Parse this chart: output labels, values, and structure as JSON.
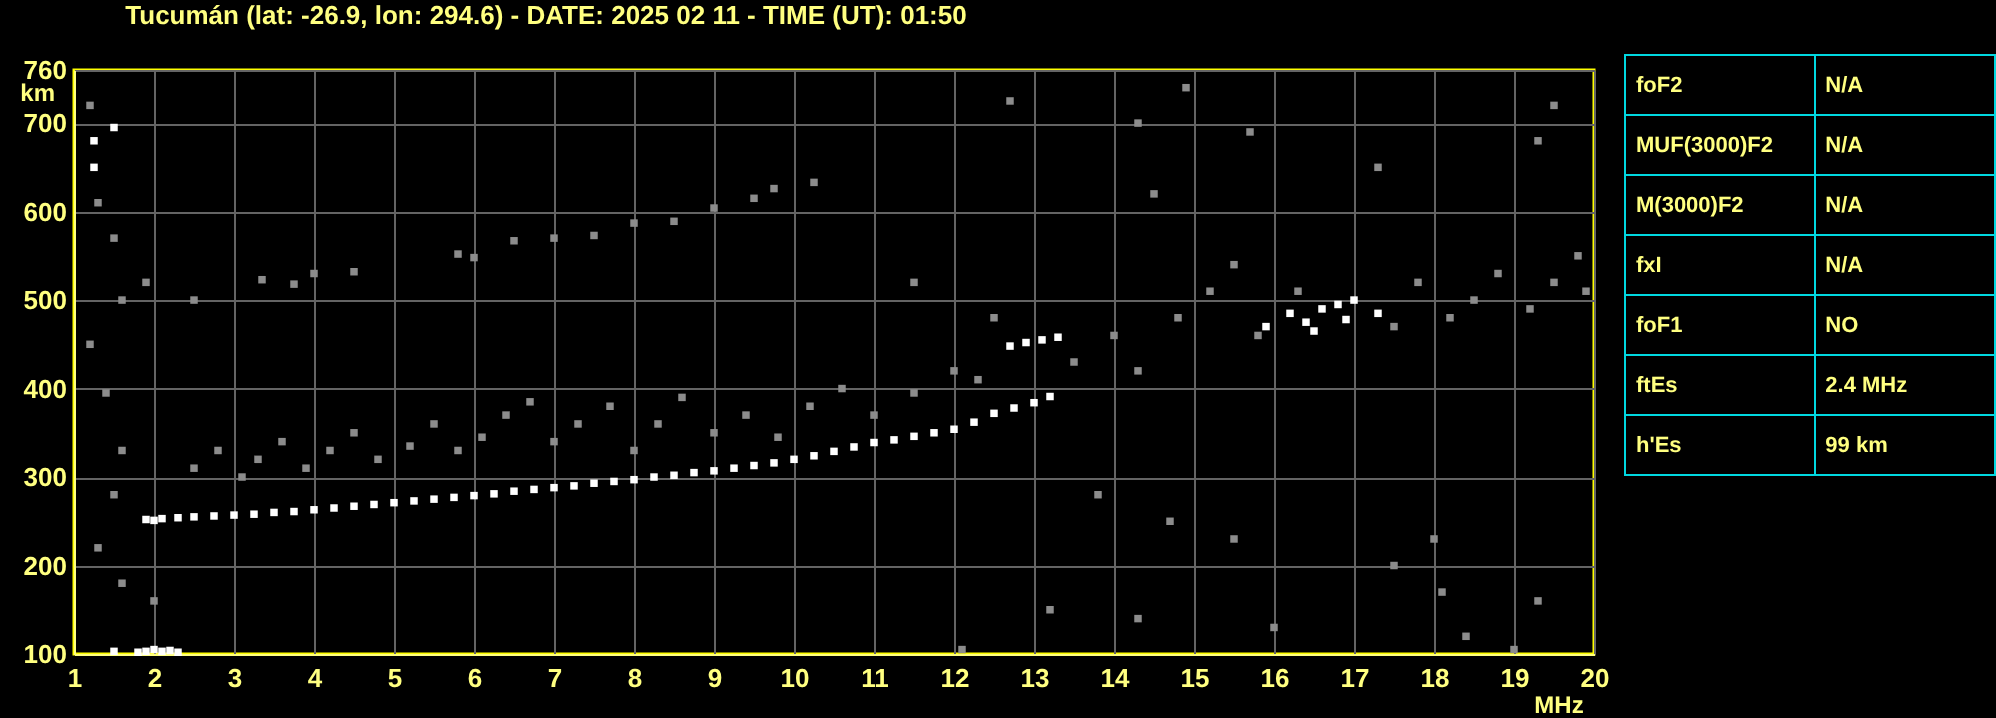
{
  "chart_data": [
    {
      "type": "scatter",
      "title": "Tucumán (lat: -26.9, lon: 294.6) - DATE: 2025 02 11 - TIME (UT): 01:50",
      "xlabel": "MHz",
      "ylabel": "km",
      "xlim": [
        1,
        20
      ],
      "ylim": [
        100,
        760
      ],
      "xticks": [
        1,
        2,
        3,
        4,
        5,
        6,
        7,
        8,
        9,
        10,
        11,
        12,
        13,
        14,
        15,
        16,
        17,
        18,
        19,
        20
      ],
      "yticks": [
        100,
        200,
        300,
        400,
        500,
        600,
        700,
        760
      ],
      "grid": true,
      "marker": "square",
      "series": [
        {
          "color": "#8c8c8c",
          "x": [
            3.35,
            3.75,
            4,
            4.5,
            5.8,
            6,
            6.5,
            7,
            7.5,
            8,
            8.5,
            9,
            9.5,
            9.75,
            10.25,
            1.2,
            1.3,
            1.5,
            1.6,
            1.9,
            2.5,
            1.2,
            1.4,
            1.6,
            1.5,
            1.3,
            1.6,
            2.0,
            2.5,
            2.8,
            3.1,
            3.3,
            3.6,
            3.9,
            4.2,
            4.5,
            4.8,
            5.2,
            5.5,
            5.8,
            6.1,
            6.4,
            6.7,
            7.0,
            7.3,
            7.7,
            8.0,
            8.3,
            8.6,
            9.0,
            9.4,
            9.8,
            10.2,
            10.6,
            11.0,
            11.5,
            12.0,
            12.3,
            11.5,
            12.5,
            13.5,
            14.0,
            14.3,
            14.8,
            15.2,
            15.5,
            15.8,
            16.3,
            17.5,
            17.8,
            18.2,
            18.5,
            18.8,
            19.2,
            19.5,
            19.8,
            19.9,
            13.8,
            14.7,
            15.5,
            17.5,
            18.0,
            18.1,
            19.3,
            14.3,
            13.2,
            16.0,
            18.4,
            12.1,
            19.0,
            14.3,
            14.9,
            15.7,
            17.3,
            19.3,
            19.5,
            14.5,
            12.7
          ],
          "values": [
            523,
            518,
            530,
            532,
            552,
            548,
            567,
            570,
            573,
            587,
            589,
            604,
            615,
            626,
            633,
            720,
            610,
            570,
            500,
            520,
            500,
            450,
            395,
            330,
            280,
            220,
            180,
            160,
            310,
            330,
            300,
            320,
            340,
            310,
            330,
            350,
            320,
            335,
            360,
            330,
            345,
            370,
            385,
            340,
            360,
            380,
            330,
            360,
            390,
            350,
            370,
            345,
            380,
            400,
            370,
            395,
            420,
            410,
            520,
            480,
            430,
            460,
            420,
            480,
            510,
            540,
            460,
            510,
            470,
            520,
            480,
            500,
            530,
            490,
            520,
            550,
            510,
            280,
            250,
            230,
            200,
            230,
            170,
            160,
            140,
            150,
            130,
            120,
            105,
            105,
            700,
            740,
            690,
            650,
            680,
            720,
            620,
            725
          ]
        },
        {
          "color": "#ffffff",
          "x": [
            1.9,
            2.0,
            2.1,
            2.3,
            2.5,
            2.75,
            3,
            3.25,
            3.5,
            3.75,
            4,
            4.25,
            4.5,
            4.75,
            5,
            5.25,
            5.5,
            5.75,
            6,
            6.25,
            6.5,
            6.75,
            7,
            7.25,
            7.5,
            7.75,
            8,
            8.25,
            8.5,
            8.75,
            9,
            9.25,
            9.5,
            9.75,
            10,
            10.25,
            10.5,
            10.75,
            11,
            11.25,
            11.5,
            11.75,
            12,
            12.25,
            12.5,
            12.75,
            13,
            13.2,
            1.5,
            1.8,
            1.9,
            2.0,
            2.1,
            2.2,
            2.3,
            12.7,
            12.9,
            13.1,
            13.3,
            15.9,
            16.2,
            16.4,
            16.6,
            16.8,
            16.9,
            17.0,
            16.5,
            17.3,
            1.25,
            1.25,
            1.5
          ],
          "values": [
            252,
            251,
            253,
            254,
            255,
            256,
            257,
            258,
            260,
            261,
            263,
            265,
            267,
            269,
            271,
            273,
            275,
            277,
            279,
            281,
            284,
            286,
            288,
            290,
            293,
            295,
            297,
            300,
            302,
            305,
            307,
            310,
            313,
            316,
            320,
            324,
            329,
            334,
            339,
            342,
            346,
            350,
            354,
            362,
            372,
            378,
            384,
            391,
            103,
            102,
            103,
            105,
            103,
            104,
            102,
            448,
            452,
            455,
            458,
            470,
            485,
            475,
            490,
            495,
            478,
            500,
            465,
            485,
            680,
            650,
            695
          ]
        }
      ]
    },
    {
      "type": "other",
      "categories": [
        "foF2",
        "MUF(3000)F2",
        "M(3000)F2",
        "fxI",
        "foF1",
        "ftEs",
        "h'Es"
      ],
      "value_labels": [
        "N/A",
        "N/A",
        "N/A",
        "N/A",
        "NO",
        "2.4 MHz",
        "99 km"
      ]
    }
  ]
}
